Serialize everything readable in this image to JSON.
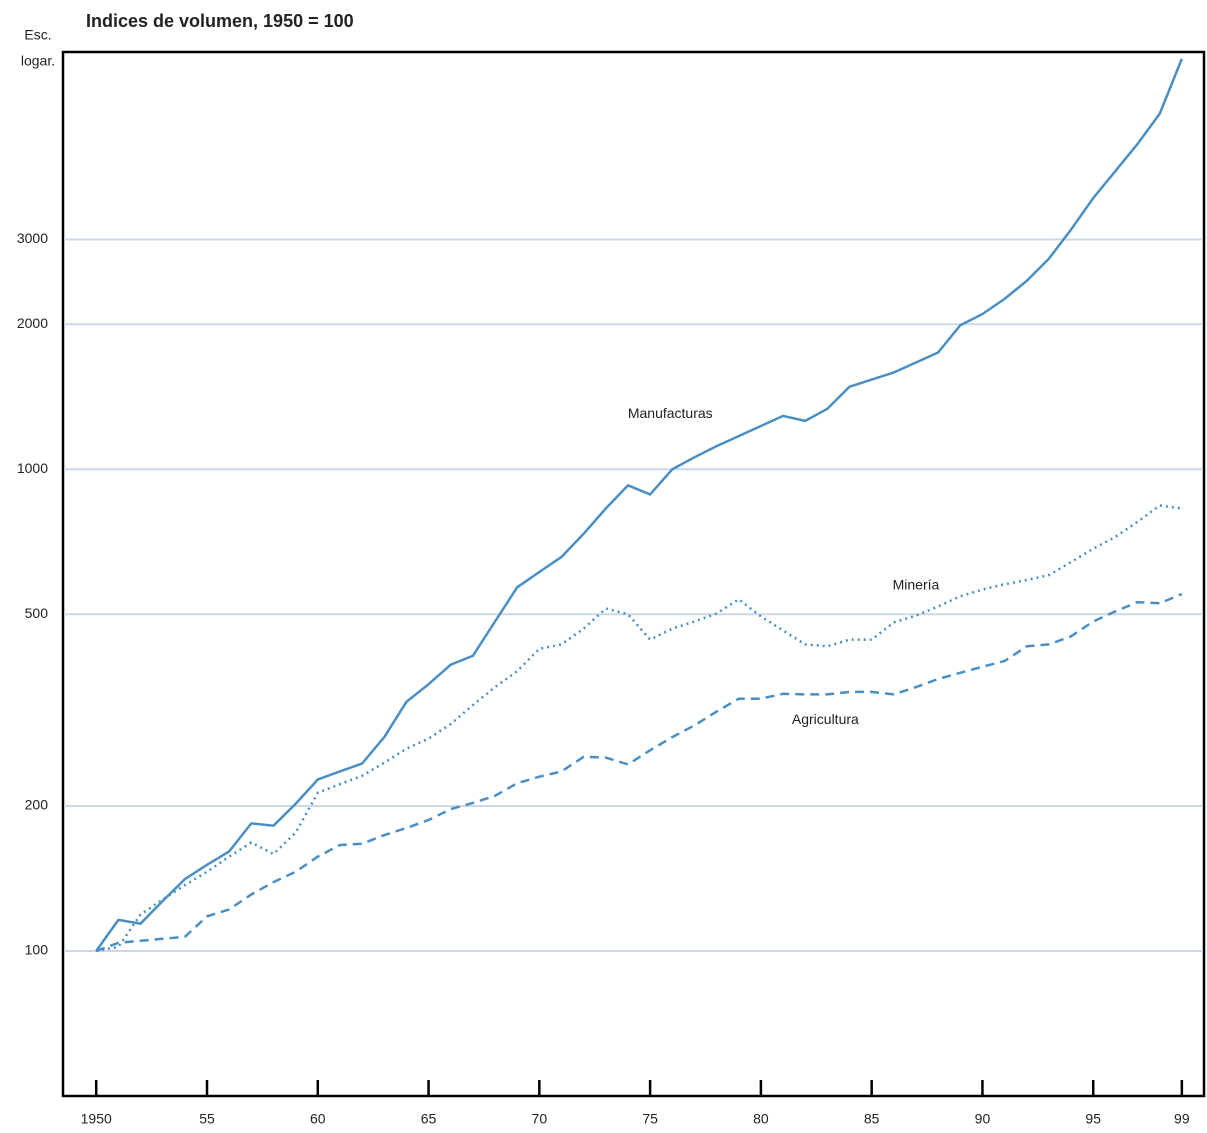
{
  "chart_data": {
    "type": "line",
    "title": "Indices de volumen, 1950 = 100",
    "y_axis_label": [
      "Esc.",
      "logar."
    ],
    "log_scale_y": true,
    "grid": true,
    "x": [
      1950,
      1951,
      1952,
      1953,
      1954,
      1955,
      1956,
      1957,
      1958,
      1959,
      1960,
      1961,
      1962,
      1963,
      1964,
      1965,
      1966,
      1967,
      1968,
      1969,
      1970,
      1971,
      1972,
      1973,
      1974,
      1975,
      1976,
      1977,
      1978,
      1979,
      1980,
      1981,
      1982,
      1983,
      1984,
      1985,
      1986,
      1987,
      1988,
      1989,
      1990,
      1991,
      1992,
      1993,
      1994,
      1995,
      1996,
      1997,
      1998,
      1999
    ],
    "xlim": [
      1948.5,
      2000
    ],
    "xticks": [
      {
        "value": 1950,
        "label": "1950"
      },
      {
        "value": 1955,
        "label": "55"
      },
      {
        "value": 1960,
        "label": "60"
      },
      {
        "value": 1965,
        "label": "65"
      },
      {
        "value": 1970,
        "label": "70"
      },
      {
        "value": 1975,
        "label": "75"
      },
      {
        "value": 1980,
        "label": "80"
      },
      {
        "value": 1985,
        "label": "85"
      },
      {
        "value": 1990,
        "label": "90"
      },
      {
        "value": 1995,
        "label": "95"
      },
      {
        "value": 1999,
        "label": "99"
      }
    ],
    "ylim": [
      50,
      7350
    ],
    "yticks": [
      100,
      200,
      500,
      1000,
      2000,
      3000
    ],
    "series": [
      {
        "name": "Manufacturas",
        "color": "#4a8fc4",
        "dash": "solid",
        "values": [
          100,
          116,
          114,
          127,
          141,
          151,
          161,
          184,
          182,
          202,
          227,
          236,
          245,
          278,
          329,
          358,
          393,
          410,
          483,
          569,
          612,
          658,
          735,
          829,
          926,
          887,
          1000,
          1059,
          1117,
          1172,
          1230,
          1291,
          1260,
          1335,
          1484,
          1535,
          1588,
          1666,
          1748,
          1991,
          2100,
          2258,
          2462,
          2737,
          3147,
          3656,
          4160,
          4734,
          5472,
          7110
        ]
      },
      {
        "name": "Minería",
        "color": "#4a8fc4",
        "dash": "dotted",
        "values": [
          100,
          102,
          119,
          128,
          137,
          146,
          157,
          168,
          159,
          176,
          213,
          222,
          231,
          246,
          263,
          276,
          296,
          324,
          353,
          381,
          424,
          433,
          467,
          514,
          500,
          443,
          467,
          483,
          502,
          537,
          495,
          463,
          433,
          429,
          443,
          443,
          481,
          497,
          519,
          545,
          563,
          577,
          589,
          603,
          642,
          684,
          724,
          778,
          841,
          829
        ]
      },
      {
        "name": "Agricultura",
        "color": "#4a8fc4",
        "dash": "dashed",
        "values": [
          100,
          104,
          105,
          106,
          107,
          118,
          122,
          131,
          139,
          146,
          157,
          166,
          167,
          174,
          180,
          187,
          197,
          203,
          210,
          223,
          230,
          236,
          253,
          252,
          244,
          261,
          278,
          294,
          314,
          334,
          334,
          342,
          341,
          341,
          345,
          345,
          341,
          353,
          367,
          378,
          389,
          400,
          429,
          433,
          450,
          483,
          507,
          530,
          527,
          551
        ]
      }
    ]
  }
}
